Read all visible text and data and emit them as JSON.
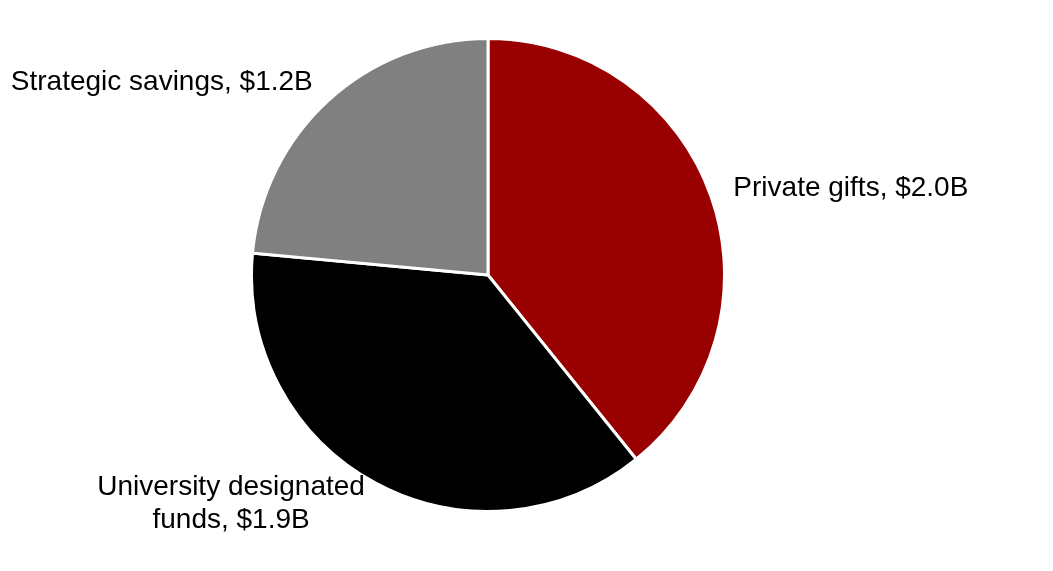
{
  "chart_data": {
    "type": "pie",
    "categories": [
      "Private gifts",
      "University designated funds",
      "Strategic savings"
    ],
    "values": [
      2.0,
      1.9,
      1.2
    ],
    "value_labels": [
      "$2.0B",
      "$1.9B",
      "$1.2B"
    ],
    "colors": [
      "#990000",
      "#000000",
      "#808080"
    ],
    "legend": false
  }
}
